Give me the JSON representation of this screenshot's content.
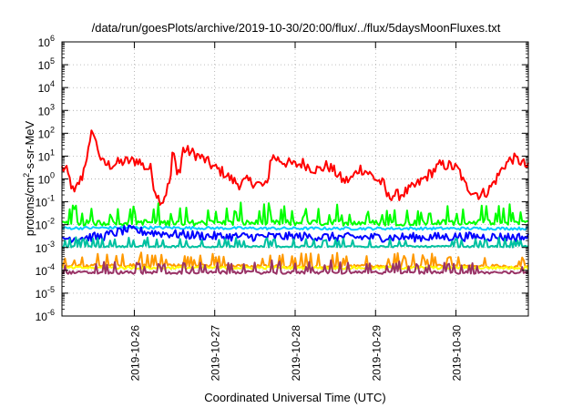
{
  "chart_data": {
    "type": "line",
    "title": "/data/run/goesPlots/archive/2019-10-30/20:00/flux/../flux/5daysMoonFluxes.txt",
    "xlabel": "Coordinated Universal Time (UTC)",
    "ylabel": {
      "base": "protons/cm",
      "sup": "2",
      "rest": "-s-sr-MeV"
    },
    "xlim": [
      0,
      5.8
    ],
    "ylim": [
      1e-06,
      1000000.0
    ],
    "yscale": "log",
    "yticks": [
      {
        "base": "10",
        "exp": "-6"
      },
      {
        "base": "10",
        "exp": "-5"
      },
      {
        "base": "10",
        "exp": "-4"
      },
      {
        "base": "10",
        "exp": "-3"
      },
      {
        "base": "10",
        "exp": "-2"
      },
      {
        "base": "10",
        "exp": "-1"
      },
      {
        "base": "10",
        "exp": "0"
      },
      {
        "base": "10",
        "exp": "1"
      },
      {
        "base": "10",
        "exp": "2"
      },
      {
        "base": "10",
        "exp": "3"
      },
      {
        "base": "10",
        "exp": "4"
      },
      {
        "base": "10",
        "exp": "5"
      },
      {
        "base": "10",
        "exp": "6"
      }
    ],
    "xticks": [
      {
        "label": "2019-10-26",
        "x": 0.9
      },
      {
        "label": "2019-10-27",
        "x": 1.9
      },
      {
        "label": "2019-10-28",
        "x": 2.9
      },
      {
        "label": "2019-10-29",
        "x": 3.9
      },
      {
        "label": "2019-10-30",
        "x": 4.9
      }
    ],
    "grid": true,
    "series": [
      {
        "color": "#ff0000",
        "base": [
          [
            0.0,
            3
          ],
          [
            0.05,
            2.5
          ],
          [
            0.1,
            0.9
          ],
          [
            0.15,
            0.2
          ],
          [
            0.2,
            0.6
          ],
          [
            0.25,
            1.2
          ],
          [
            0.3,
            8
          ],
          [
            0.35,
            30
          ],
          [
            0.38,
            200
          ],
          [
            0.42,
            40
          ],
          [
            0.45,
            20
          ],
          [
            0.5,
            5
          ],
          [
            0.6,
            4
          ],
          [
            0.7,
            5
          ],
          [
            0.8,
            6
          ],
          [
            0.9,
            6
          ],
          [
            0.95,
            7
          ],
          [
            1.0,
            4
          ],
          [
            1.05,
            3
          ],
          [
            1.1,
            3
          ],
          [
            1.15,
            0.4
          ],
          [
            1.2,
            0.15
          ],
          [
            1.25,
            0.1
          ],
          [
            1.3,
            0.3
          ],
          [
            1.35,
            1
          ],
          [
            1.38,
            20
          ],
          [
            1.42,
            3
          ],
          [
            1.47,
            2
          ],
          [
            1.5,
            20
          ],
          [
            1.6,
            15
          ],
          [
            1.7,
            10
          ],
          [
            1.8,
            6
          ],
          [
            1.9,
            3
          ],
          [
            2.0,
            2
          ],
          [
            2.1,
            1
          ],
          [
            2.2,
            0.6
          ],
          [
            2.3,
            0.8
          ],
          [
            2.4,
            0.7
          ],
          [
            2.5,
            0.5
          ],
          [
            2.55,
            0.5
          ],
          [
            2.6,
            10
          ],
          [
            2.7,
            7
          ],
          [
            2.8,
            5
          ],
          [
            2.9,
            4
          ],
          [
            3.0,
            5
          ],
          [
            3.1,
            3
          ],
          [
            3.2,
            2.5
          ],
          [
            3.3,
            4
          ],
          [
            3.4,
            2
          ],
          [
            3.5,
            0.8
          ],
          [
            3.6,
            1
          ],
          [
            3.7,
            3
          ],
          [
            3.8,
            2
          ],
          [
            3.9,
            1
          ],
          [
            4.0,
            0.6
          ],
          [
            4.05,
            0.15
          ],
          [
            4.1,
            0.2
          ],
          [
            4.2,
            0.2
          ],
          [
            4.3,
            0.3
          ],
          [
            4.4,
            0.5
          ],
          [
            4.5,
            1
          ],
          [
            4.6,
            2
          ],
          [
            4.7,
            4
          ],
          [
            4.8,
            4
          ],
          [
            4.9,
            3
          ],
          [
            4.95,
            2
          ],
          [
            5.0,
            0.6
          ],
          [
            5.1,
            0.3
          ],
          [
            5.2,
            0.2
          ],
          [
            5.3,
            0.3
          ],
          [
            5.4,
            1
          ],
          [
            5.5,
            4
          ],
          [
            5.6,
            8
          ],
          [
            5.7,
            6
          ],
          [
            5.8,
            3
          ]
        ],
        "noise": 0.5
      },
      {
        "color": "#00ff00",
        "base": [
          [
            0.0,
            0.012
          ],
          [
            0.5,
            0.012
          ],
          [
            1.0,
            0.013
          ],
          [
            1.3,
            0.012
          ],
          [
            1.6,
            0.012
          ],
          [
            2.0,
            0.012
          ],
          [
            2.5,
            0.012
          ],
          [
            3.0,
            0.012
          ],
          [
            3.5,
            0.012
          ],
          [
            4.0,
            0.012
          ],
          [
            4.5,
            0.012
          ],
          [
            5.0,
            0.013
          ],
          [
            5.8,
            0.013
          ]
        ],
        "noise": 0.5,
        "spikes": "up"
      },
      {
        "color": "#00ccff",
        "base": [
          [
            0.0,
            0.007
          ],
          [
            1.0,
            0.0075
          ],
          [
            2.0,
            0.007
          ],
          [
            3.0,
            0.0068
          ],
          [
            4.0,
            0.0068
          ],
          [
            5.0,
            0.0068
          ],
          [
            5.8,
            0.0068
          ]
        ],
        "noise": 0.12
      },
      {
        "color": "#0000ff",
        "base": [
          [
            0.0,
            0.0025
          ],
          [
            0.5,
            0.003
          ],
          [
            0.8,
            0.006
          ],
          [
            1.0,
            0.005
          ],
          [
            1.3,
            0.004
          ],
          [
            1.6,
            0.0035
          ],
          [
            2.0,
            0.003
          ],
          [
            2.5,
            0.003
          ],
          [
            3.0,
            0.003
          ],
          [
            3.5,
            0.0028
          ],
          [
            4.0,
            0.0028
          ],
          [
            4.5,
            0.0028
          ],
          [
            5.0,
            0.003
          ],
          [
            5.8,
            0.0028
          ]
        ],
        "noise": 0.4
      },
      {
        "color": "#00c0a0",
        "base": [
          [
            0.0,
            0.0011
          ],
          [
            1.0,
            0.0011
          ],
          [
            2.0,
            0.0011
          ],
          [
            3.0,
            0.0011
          ],
          [
            4.0,
            0.0011
          ],
          [
            5.0,
            0.0011
          ],
          [
            5.8,
            0.0011
          ]
        ],
        "noise": 0.15,
        "spikes": "up"
      },
      {
        "color": "#ff9900",
        "base": [
          [
            0.0,
            0.00016
          ],
          [
            1.0,
            0.00016
          ],
          [
            2.0,
            0.00015
          ],
          [
            3.0,
            0.00015
          ],
          [
            4.0,
            0.00015
          ],
          [
            5.0,
            0.00015
          ],
          [
            5.8,
            0.00015
          ]
        ],
        "noise": 0.3,
        "spikes": "up"
      },
      {
        "color": "#ffff00",
        "base": [
          [
            0.0,
            0.00013
          ],
          [
            1.0,
            0.00013
          ],
          [
            2.0,
            0.00013
          ],
          [
            3.0,
            0.00013
          ],
          [
            4.0,
            0.00013
          ],
          [
            5.0,
            0.00013
          ],
          [
            5.8,
            0.00013
          ]
        ],
        "noise": 0.12
      },
      {
        "color": "#993366",
        "base": [
          [
            0.0,
            8e-05
          ],
          [
            1.0,
            8e-05
          ],
          [
            2.0,
            8e-05
          ],
          [
            3.0,
            8e-05
          ],
          [
            4.0,
            8e-05
          ],
          [
            5.0,
            8e-05
          ],
          [
            5.8,
            8e-05
          ]
        ],
        "noise": 0.25,
        "spikes": "up"
      }
    ]
  }
}
